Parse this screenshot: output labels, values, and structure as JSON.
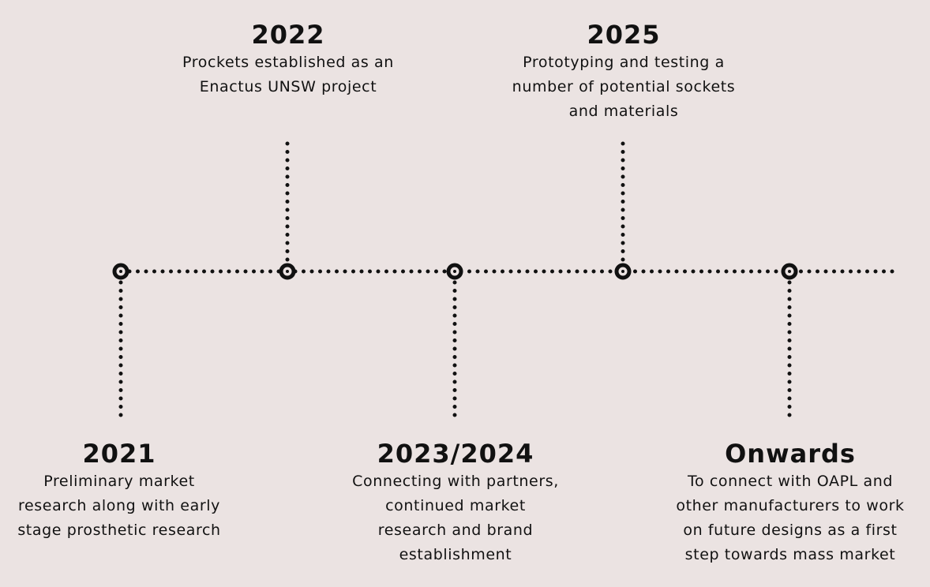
{
  "events": [
    {
      "year": "2021",
      "description": "Preliminary market research along with early stage prosthetic research"
    },
    {
      "year": "2022",
      "description": "Prockets established as an Enactus UNSW project"
    },
    {
      "year": "2023/2024",
      "description": "Connecting with partners, continued market research and brand establishment"
    },
    {
      "year": "2025",
      "description": "Prototyping and testing a number of potential sockets and materials"
    },
    {
      "year": "Onwards",
      "description": "To connect with OAPL and other manufacturers to work on future designs as a first step towards mass market"
    }
  ],
  "colors": {
    "background": "#ebe3e2",
    "ink": "#111111"
  }
}
